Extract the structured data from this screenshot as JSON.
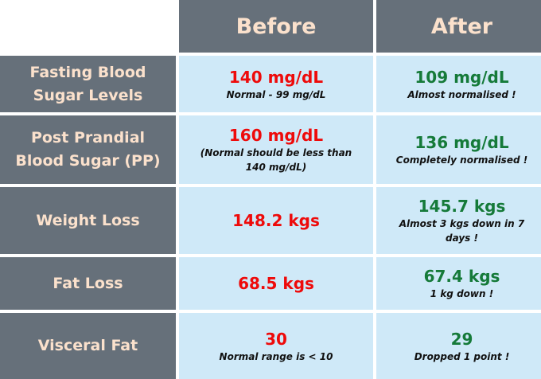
{
  "columns": {
    "before": "Before",
    "after": "After"
  },
  "rows": [
    {
      "label": "Fasting Blood Sugar Levels",
      "before_value": "140 mg/dL",
      "before_note": "Normal - 99 mg/dL",
      "after_value": "109 mg/dL",
      "after_note": "Almost normalised !"
    },
    {
      "label": "Post Prandial Blood Sugar (PP)",
      "before_value": "160 mg/dL",
      "before_note": "(Normal should be less than 140 mg/dL)",
      "after_value": "136 mg/dL",
      "after_note": "Completely normalised !"
    },
    {
      "label": "Weight Loss",
      "before_value": "148.2 kgs",
      "before_note": "",
      "after_value": "145.7 kgs",
      "after_note": "Almost 3 kgs down in 7 days !"
    },
    {
      "label": "Fat Loss",
      "before_value": "68.5 kgs",
      "before_note": "",
      "after_value": "67.4 kgs",
      "after_note": "1 kg down !"
    },
    {
      "label": "Visceral Fat",
      "before_value": "30",
      "before_note": "Normal range is < 10",
      "after_value": "29",
      "after_note": "Dropped 1 point !"
    }
  ],
  "colors": {
    "header_bg": "#66707a",
    "header_text": "#fbe1cc",
    "cell_bg": "#cfe9f8",
    "before_value": "#ee0a0a",
    "after_value": "#157a39"
  }
}
